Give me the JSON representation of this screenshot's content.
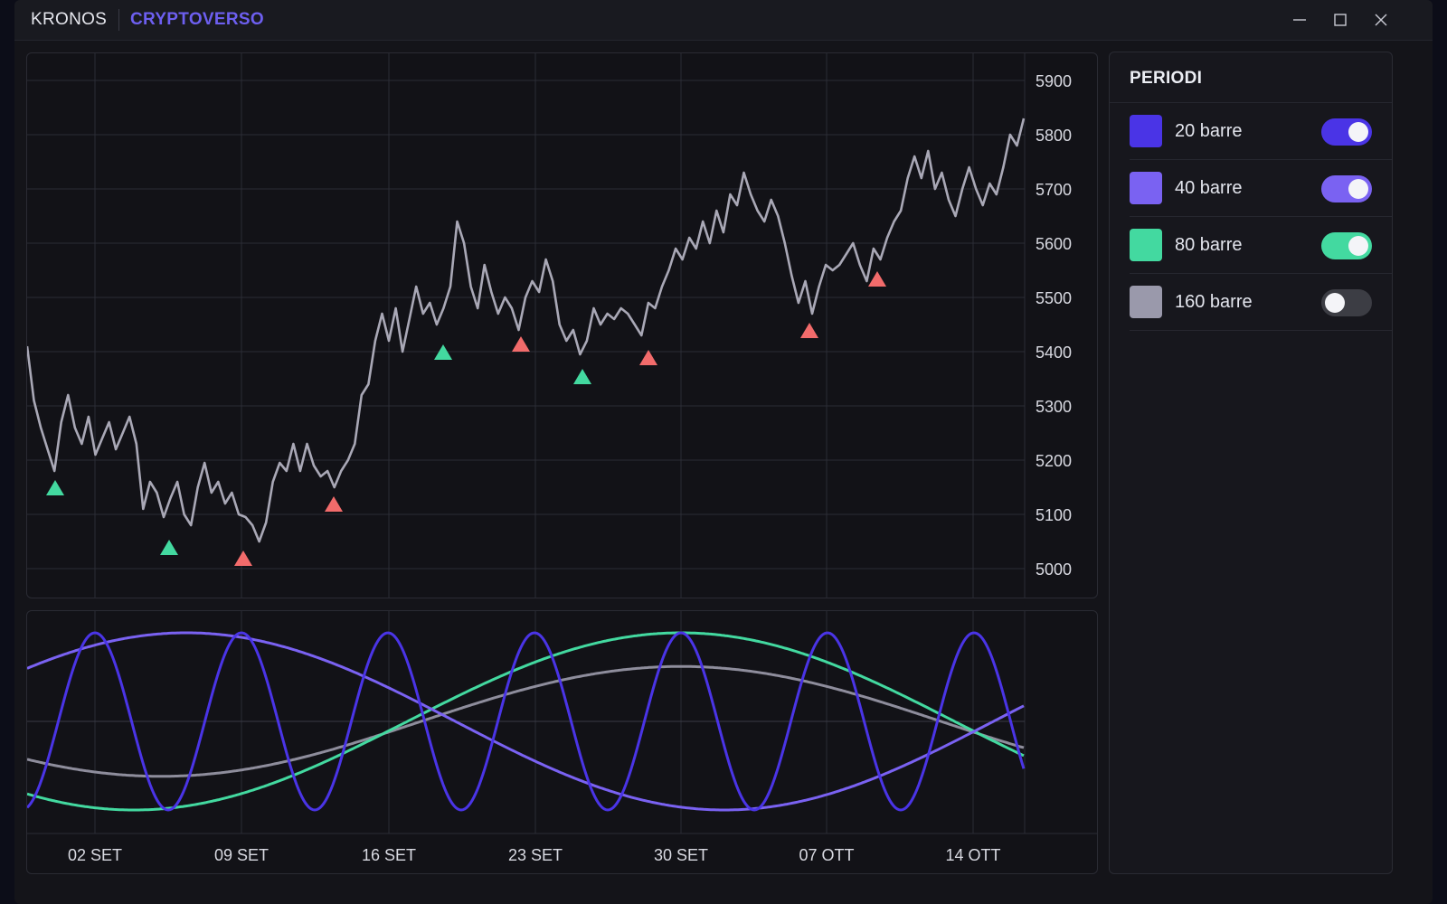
{
  "titlebar": {
    "app_name": "KRONOS",
    "workspace": "CRYPTOVERSO",
    "controls": [
      "minimize-icon",
      "maximize-icon",
      "close-icon"
    ]
  },
  "sidebar": {
    "title": "PERIODI",
    "periods": [
      {
        "label": "20 barre",
        "color": "#4a34e6",
        "enabled": true
      },
      {
        "label": "40 barre",
        "color": "#7a62f2",
        "enabled": true
      },
      {
        "label": "80 barre",
        "color": "#43d9a0",
        "enabled": true
      },
      {
        "label": "160 barre",
        "color": "#9a99ab",
        "enabled": false
      }
    ]
  },
  "chart_data": [
    {
      "type": "line",
      "title": "",
      "xlabel": "",
      "ylabel": "",
      "ylim": [
        4950,
        5950
      ],
      "yticks": [
        5000,
        5100,
        5200,
        5300,
        5400,
        5500,
        5600,
        5700,
        5800,
        5900
      ],
      "grid": true,
      "x_ticks": [
        "02 SET",
        "09 SET",
        "16 SET",
        "23 SET",
        "30 SET",
        "07 OTT",
        "14 OTT"
      ],
      "series": [
        {
          "line_color": "#a9a8b6",
          "values": [
            5410,
            5310,
            5260,
            5220,
            5180,
            5270,
            5320,
            5260,
            5230,
            5280,
            5210,
            5240,
            5270,
            5220,
            5250,
            5280,
            5230,
            5110,
            5160,
            5140,
            5095,
            5130,
            5160,
            5100,
            5080,
            5150,
            5195,
            5140,
            5160,
            5120,
            5140,
            5100,
            5095,
            5080,
            5050,
            5085,
            5160,
            5195,
            5180,
            5230,
            5180,
            5230,
            5190,
            5170,
            5180,
            5150,
            5180,
            5200,
            5230,
            5320,
            5340,
            5420,
            5470,
            5420,
            5480,
            5400,
            5460,
            5520,
            5470,
            5490,
            5450,
            5480,
            5520,
            5640,
            5600,
            5520,
            5480,
            5560,
            5510,
            5470,
            5500,
            5480,
            5440,
            5500,
            5530,
            5510,
            5570,
            5530,
            5450,
            5420,
            5440,
            5395,
            5420,
            5480,
            5450,
            5470,
            5460,
            5480,
            5470,
            5450,
            5430,
            5490,
            5480,
            5520,
            5550,
            5590,
            5570,
            5610,
            5590,
            5640,
            5600,
            5660,
            5620,
            5690,
            5670,
            5730,
            5690,
            5660,
            5640,
            5680,
            5650,
            5600,
            5540,
            5490,
            5530,
            5470,
            5520,
            5560,
            5550,
            5560,
            5580,
            5600,
            5560,
            5530,
            5590,
            5570,
            5610,
            5640,
            5660,
            5720,
            5760,
            5720,
            5770,
            5700,
            5730,
            5680,
            5650,
            5700,
            5740,
            5700,
            5670,
            5710,
            5690,
            5740,
            5800,
            5780,
            5830
          ]
        }
      ],
      "markers": [
        {
          "kind": "up",
          "color": "#43d9a0",
          "y": 5150
        },
        {
          "kind": "up",
          "color": "#43d9a0",
          "y": 5040
        },
        {
          "kind": "up",
          "color": "#f26b6b",
          "y": 5020
        },
        {
          "kind": "up",
          "color": "#f26b6b",
          "y": 5120
        },
        {
          "kind": "up",
          "color": "#43d9a0",
          "y": 5400
        },
        {
          "kind": "up",
          "color": "#f26b6b",
          "y": 5415
        },
        {
          "kind": "up",
          "color": "#43d9a0",
          "y": 5355
        },
        {
          "kind": "up",
          "color": "#f26b6b",
          "y": 5390
        },
        {
          "kind": "up",
          "color": "#f26b6b",
          "y": 5440
        },
        {
          "kind": "up",
          "color": "#f26b6b",
          "y": 5535
        }
      ]
    },
    {
      "type": "line",
      "title": "",
      "grid": true,
      "ylim": [
        -1,
        1
      ],
      "x_ticks": [
        "02 SET",
        "09 SET",
        "16 SET",
        "23 SET",
        "30 SET",
        "07 OTT",
        "14 OTT"
      ],
      "series": [
        {
          "period": "20 barre",
          "color": "#4a34e6",
          "peaks_at": [
            "02 SET",
            "09 SET",
            "16 SET",
            "23 SET",
            "30 SET",
            "07 OTT",
            "14 OTT"
          ],
          "amplitude": 1.0
        },
        {
          "period": "40 barre",
          "color": "#7a62f2",
          "amplitude": 1.0
        },
        {
          "period": "80 barre",
          "color": "#43d9a0",
          "amplitude": 1.0
        },
        {
          "period": "160 barre",
          "color": "#8e8d9c",
          "amplitude": 0.62
        }
      ]
    }
  ]
}
